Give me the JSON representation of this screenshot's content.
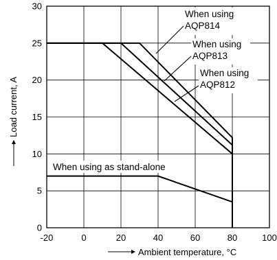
{
  "chart_data": {
    "type": "line",
    "xlabel": "Ambient temperature, °C",
    "ylabel": "Load current, A",
    "xlim": [
      -20,
      100
    ],
    "ylim": [
      0,
      30
    ],
    "x_ticks": [
      "-20",
      "0",
      "20",
      "40",
      "60",
      "80",
      "100"
    ],
    "y_ticks": [
      "0",
      "5",
      "10",
      "15",
      "20",
      "25",
      "30"
    ],
    "grid": true,
    "series": [
      {
        "name": "When using AQP814",
        "x": [
          -20,
          30,
          80,
          80
        ],
        "y": [
          25,
          25,
          12.2,
          0
        ]
      },
      {
        "name": "When using AQP813",
        "x": [
          -20,
          20,
          80,
          80
        ],
        "y": [
          25,
          25,
          11.2,
          0
        ]
      },
      {
        "name": "When using AQP812",
        "x": [
          -20,
          10,
          80,
          80
        ],
        "y": [
          25,
          25,
          10,
          0
        ]
      },
      {
        "name": "When using as stand-alone",
        "x": [
          -20,
          40,
          80,
          80
        ],
        "y": [
          7,
          7,
          3.5,
          0
        ]
      }
    ],
    "annotations": {
      "aqp814_line1": "When using",
      "aqp814_line2": "AQP814",
      "aqp813_line1": "When using",
      "aqp813_line2": "AQP813",
      "aqp812_line1": "When using",
      "aqp812_line2": "AQP812",
      "standalone": "When using as stand-alone"
    }
  }
}
